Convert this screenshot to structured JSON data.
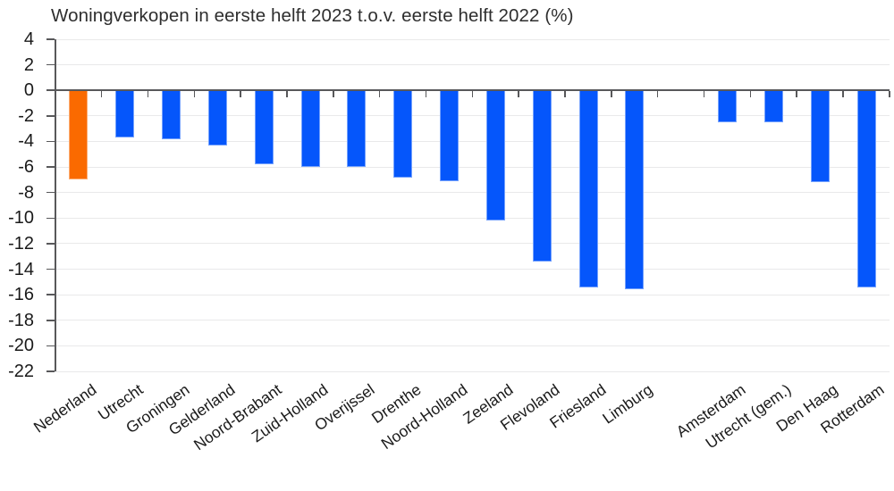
{
  "title": "Woningverkopen in eerste helft 2023 t.o.v. eerste helft 2022 (%)",
  "chart_data": {
    "type": "bar",
    "title": "Woningverkopen in eerste helft 2023 t.o.v. eerste helft 2022 (%)",
    "categories": [
      "Nederland",
      "Utrecht",
      "Groningen",
      "Gelderland",
      "Noord-Brabant",
      "Zuid-Holland",
      "Overijssel",
      "Drenthe",
      "Noord-Holland",
      "Zeeland",
      "Flevoland",
      "Friesland",
      "Limburg",
      "Amsterdam",
      "Utrecht (gem.)",
      "Den Haag",
      "Rotterdam"
    ],
    "values": [
      -7.0,
      -3.7,
      -3.8,
      -4.3,
      -5.8,
      -6.0,
      -6.0,
      -6.8,
      -7.1,
      -10.2,
      -13.4,
      -15.4,
      -15.6,
      -2.5,
      -2.5,
      -7.2,
      -15.4
    ],
    "gap_slot_index": 13,
    "total_slots": 18,
    "xlabel": "",
    "ylabel": "",
    "ylim": [
      -22,
      4
    ],
    "ytick_step": 2,
    "ytick_labels": [
      "4",
      "2",
      "0",
      "-2",
      "-4",
      "-6",
      "-8",
      "-10",
      "-12",
      "-14",
      "-16",
      "-18",
      "-20",
      "-22"
    ],
    "grid": true,
    "legend": "none",
    "highlight_category": "Nederland",
    "colors": {
      "highlight_bar": "#fa6a00",
      "bar": "#0556fb",
      "axis": "#58585a",
      "gridline": "#e9e9ea",
      "text": "#1a1a1a",
      "title_text": "#2e2e2e"
    }
  }
}
